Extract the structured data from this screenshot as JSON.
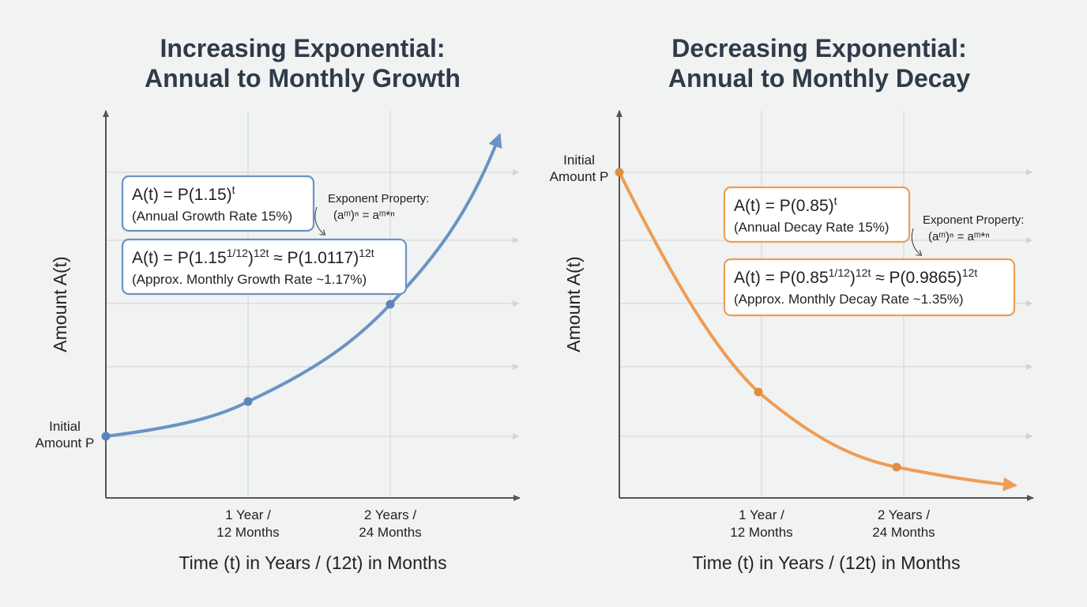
{
  "panels": [
    {
      "title": [
        "Increasing Exponential:",
        "Annual to Monthly Growth"
      ],
      "y_axis_label": "Amount A(t)",
      "x_axis_label": "Time (t) in Years / (12t) in Months",
      "initial_label": [
        "Initial",
        "Amount P"
      ],
      "x_tick_labels": [
        [
          "1 Year /",
          "12 Months"
        ],
        [
          "2 Years /",
          "24 Months"
        ]
      ],
      "annual_formula": [
        "A(t) = P(1.15)",
        "t"
      ],
      "annual_note": "(Annual Growth Rate 15%)",
      "property_note": {
        "heading": "Exponent Property:",
        "rule": "(aᵐ)ⁿ = aᵐ*ⁿ"
      },
      "monthly_formula": [
        "A(t) = P(1.15",
        "1/12",
        ")",
        "12t",
        " ≈ P(1.0117)",
        "12t"
      ],
      "monthly_note": "(Approx. Monthly Growth Rate ~1.17%)"
    },
    {
      "title": [
        "Decreasing Exponential:",
        "Annual to Monthly Decay"
      ],
      "y_axis_label": "Amount A(t)",
      "x_axis_label": "Time (t) in Years / (12t) in Months",
      "initial_label": [
        "Initial",
        "Amount P"
      ],
      "x_tick_labels": [
        [
          "1 Year /",
          "12 Months"
        ],
        [
          "2 Years /",
          "24 Months"
        ]
      ],
      "annual_formula": [
        "A(t) = P(0.85)",
        "t"
      ],
      "annual_note": "(Annual Decay Rate 15%)",
      "property_note": {
        "heading": "Exponent Property:",
        "rule": "(aᵐ)ⁿ = aᵐ*ⁿ"
      },
      "monthly_formula": [
        "A(t) = P(0.85",
        "1/12",
        ")",
        "12t",
        " ≈ P(0.9865)",
        "12t"
      ],
      "monthly_note": "(Approx. Monthly Decay Rate ~1.35%)"
    }
  ]
}
